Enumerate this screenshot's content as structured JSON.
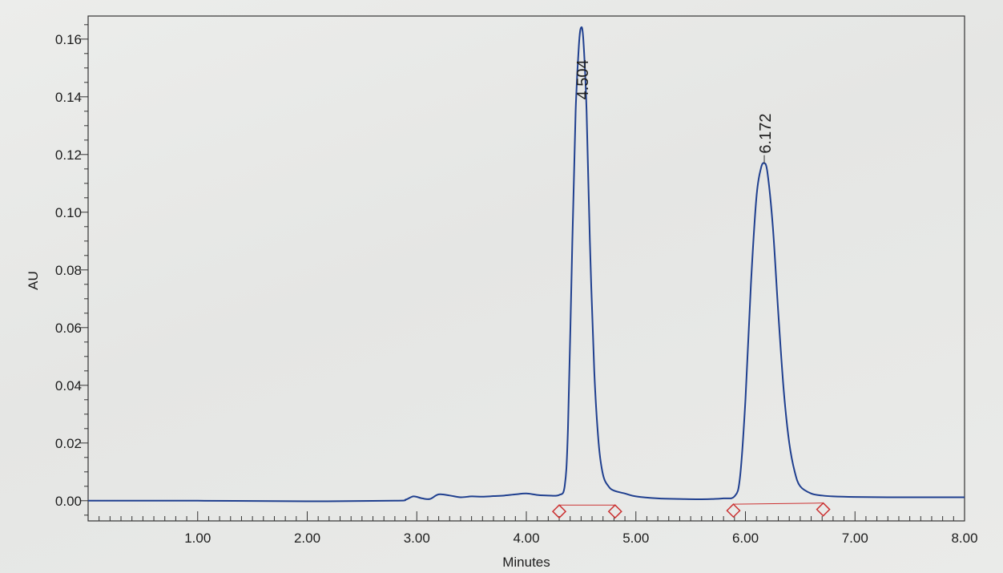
{
  "chart_data": {
    "type": "line",
    "title": "",
    "xlabel": "Minutes",
    "ylabel": "AU",
    "xlim": [
      0.0,
      8.0
    ],
    "ylim": [
      -0.007,
      0.168
    ],
    "grid": false,
    "x_ticks": [
      "1.00",
      "2.00",
      "3.00",
      "4.00",
      "5.00",
      "6.00",
      "7.00",
      "8.00"
    ],
    "y_ticks": [
      "0.00",
      "0.02",
      "0.04",
      "0.06",
      "0.08",
      "0.10",
      "0.12",
      "0.14",
      "0.16"
    ],
    "colors": {
      "trace": "#1f3f8f",
      "baseline": "#cc3333",
      "marker": "#cc3333",
      "axis": "#333333"
    },
    "series": [
      {
        "x": [
          0.0,
          1.0,
          2.0,
          2.8,
          2.9,
          2.97,
          3.05,
          3.12,
          3.2,
          3.3,
          3.4,
          3.5,
          3.6,
          3.7,
          3.8,
          3.9,
          4.0,
          4.1,
          4.2,
          4.3,
          4.35,
          4.38,
          4.42,
          4.45,
          4.48,
          4.5,
          4.52,
          4.55,
          4.58,
          4.62,
          4.66,
          4.7,
          4.75,
          4.8,
          4.9,
          5.0,
          5.2,
          5.4,
          5.6,
          5.8,
          5.9,
          5.95,
          6.0,
          6.05,
          6.1,
          6.14,
          6.17,
          6.2,
          6.25,
          6.3,
          6.35,
          6.4,
          6.45,
          6.5,
          6.6,
          6.7,
          6.8,
          7.0,
          7.3,
          7.6,
          8.0
        ],
        "y": [
          0.0,
          0.0,
          -0.0002,
          0.0,
          0.0004,
          0.0015,
          0.0008,
          0.0006,
          0.0022,
          0.0018,
          0.0012,
          0.0015,
          0.0014,
          0.0016,
          0.0018,
          0.0022,
          0.0025,
          0.002,
          0.0018,
          0.002,
          0.005,
          0.025,
          0.09,
          0.135,
          0.158,
          0.164,
          0.16,
          0.135,
          0.09,
          0.045,
          0.02,
          0.009,
          0.005,
          0.0035,
          0.0025,
          0.0015,
          0.0008,
          0.0006,
          0.0005,
          0.0008,
          0.0015,
          0.008,
          0.035,
          0.075,
          0.105,
          0.115,
          0.117,
          0.114,
          0.095,
          0.065,
          0.038,
          0.02,
          0.01,
          0.005,
          0.0025,
          0.0018,
          0.0015,
          0.0013,
          0.0012,
          0.0012,
          0.0012
        ]
      }
    ],
    "peaks": [
      {
        "label": "4.504",
        "rt": 4.504,
        "height": 0.164
      },
      {
        "label": "6.172",
        "rt": 6.172,
        "height": 0.117
      }
    ],
    "integration_baselines": [
      {
        "start": [
          4.3,
          -0.0015
        ],
        "end": [
          4.81,
          -0.0015
        ]
      },
      {
        "start": [
          5.89,
          -0.0012
        ],
        "end": [
          6.71,
          -0.0008
        ]
      }
    ]
  }
}
